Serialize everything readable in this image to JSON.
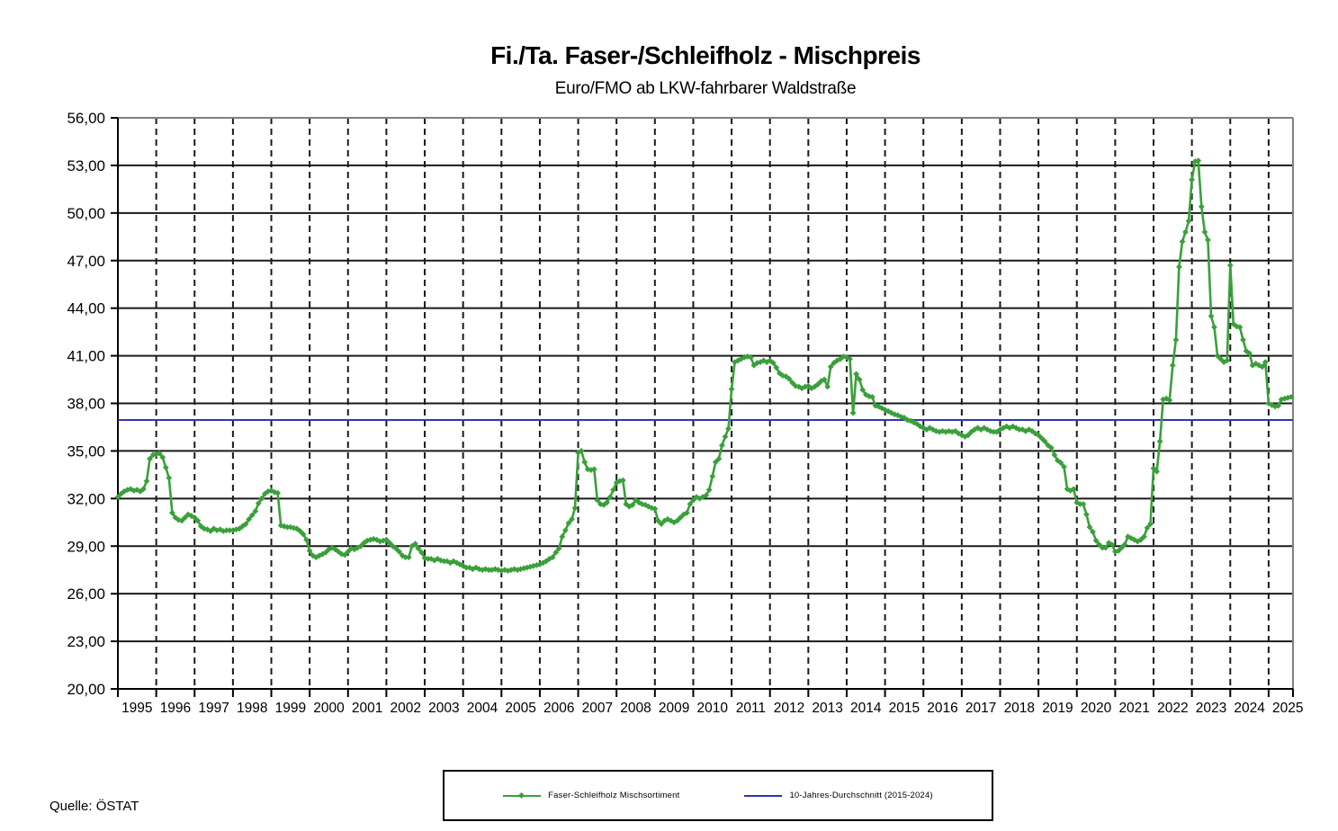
{
  "header": {
    "title": "Fi./Ta. Faser-/Schleifholz - Mischpreis",
    "subtitle": "Euro/FMO ab LKW-fahrbarer Waldstraße"
  },
  "source": "Quelle: ÖSTAT",
  "legend": {
    "series_label": "Faser-Schleifholz Mischsortiment",
    "average_label": "10-Jahres-Durchschnitt (2015-2024)"
  },
  "colors": {
    "series_green": "#3aa03a",
    "average_blue": "#3333b4",
    "gridline_black": "#1a1a1a",
    "border_gray": "#808080"
  },
  "chart_data": {
    "type": "line",
    "title": "Fi./Ta. Faser-/Schleifholz - Mischpreis",
    "subtitle": "Euro/FMO ab LKW-fahrbarer Waldstraße",
    "ylabel": "Euro/FMO",
    "ylim": [
      20,
      56
    ],
    "y_step": 3,
    "y_tick_labels": [
      "56,00",
      "53,00",
      "50,00",
      "47,00",
      "44,00",
      "41,00",
      "38,00",
      "35,00",
      "32,00",
      "29,00",
      "26,00",
      "23,00",
      "20,00"
    ],
    "x_tick_labels": [
      "1995",
      "1996",
      "1997",
      "1998",
      "1999",
      "2000",
      "2001",
      "2002",
      "2003",
      "2004",
      "2005",
      "2006",
      "2007",
      "2008",
      "2009",
      "2010",
      "2011",
      "2012",
      "2013",
      "2014",
      "2015",
      "2016",
      "2017",
      "2018",
      "2019",
      "2020",
      "2021",
      "2022",
      "2023",
      "2024",
      "2025"
    ],
    "grid": "horizontal solid, vertical dashed per year",
    "legend_position": "bottom box",
    "frequency": "monthly",
    "average_line": {
      "name": "10-Jahres-Durchschnitt (2015-2024)",
      "value": 36.95
    },
    "series": [
      {
        "name": "Faser-Schleifholz Mischsortiment",
        "start": "1995-01",
        "years": [
          {
            "year": 1995,
            "values": [
              32.1,
              32.3,
              32.45,
              32.55,
              32.6,
              32.5,
              32.55,
              32.45,
              32.6,
              33.1,
              34.5,
              34.75
            ]
          },
          {
            "year": 1996,
            "values": [
              34.8,
              34.85,
              34.6,
              33.95,
              33.3,
              31.1,
              30.8,
              30.65,
              30.6,
              30.8,
              31.0,
              30.9
            ]
          },
          {
            "year": 1997,
            "values": [
              30.8,
              30.6,
              30.25,
              30.1,
              30.05,
              29.95,
              30.1,
              30.0,
              30.05,
              29.95,
              30.0,
              30.0
            ]
          },
          {
            "year": 1998,
            "values": [
              30.0,
              30.05,
              30.1,
              30.25,
              30.4,
              30.7,
              30.95,
              31.2,
              31.7,
              32.0,
              32.3,
              32.45
            ]
          },
          {
            "year": 1999,
            "values": [
              32.5,
              32.4,
              32.35,
              30.3,
              30.25,
              30.2,
              30.2,
              30.15,
              30.1,
              29.95,
              29.75,
              29.4
            ]
          },
          {
            "year": 2000,
            "values": [
              28.7,
              28.4,
              28.3,
              28.4,
              28.5,
              28.6,
              28.8,
              28.9,
              28.8,
              28.65,
              28.5,
              28.45
            ]
          },
          {
            "year": 2001,
            "values": [
              28.65,
              28.85,
              28.8,
              28.9,
              29.0,
              29.2,
              29.35,
              29.4,
              29.45,
              29.4,
              29.3,
              29.35
            ]
          },
          {
            "year": 2002,
            "values": [
              29.4,
              29.2,
              29.0,
              28.85,
              28.65,
              28.4,
              28.3,
              28.3,
              29.0,
              29.15,
              28.85,
              28.6
            ]
          },
          {
            "year": 2003,
            "values": [
              28.25,
              28.2,
              28.2,
              28.1,
              28.2,
              28.1,
              28.05,
              28.05,
              27.95,
              28.05,
              27.95,
              27.85
            ]
          },
          {
            "year": 2004,
            "values": [
              27.75,
              27.65,
              27.65,
              27.55,
              27.65,
              27.55,
              27.5,
              27.55,
              27.5,
              27.5,
              27.55,
              27.5
            ]
          },
          {
            "year": 2005,
            "values": [
              27.45,
              27.5,
              27.45,
              27.5,
              27.55,
              27.5,
              27.55,
              27.6,
              27.65,
              27.7,
              27.75,
              27.8
            ]
          },
          {
            "year": 2006,
            "values": [
              27.85,
              27.95,
              28.05,
              28.2,
              28.3,
              28.6,
              28.85,
              29.6,
              30.0,
              30.45,
              30.7,
              31.4
            ]
          },
          {
            "year": 2007,
            "values": [
              34.9,
              35.0,
              34.3,
              33.85,
              33.8,
              33.85,
              31.9,
              31.65,
              31.6,
              31.75,
              32.1,
              32.55
            ]
          },
          {
            "year": 2008,
            "values": [
              33.0,
              33.1,
              33.15,
              31.65,
              31.5,
              31.6,
              31.9,
              31.75,
              31.65,
              31.6,
              31.5,
              31.4
            ]
          },
          {
            "year": 2009,
            "values": [
              31.35,
              30.6,
              30.4,
              30.6,
              30.7,
              30.6,
              30.5,
              30.6,
              30.8,
              31.0,
              31.1,
              31.65
            ]
          },
          {
            "year": 2010,
            "values": [
              31.9,
              32.1,
              32.0,
              32.1,
              32.2,
              32.55,
              33.4,
              34.3,
              34.5,
              35.35,
              35.9,
              36.4
            ]
          },
          {
            "year": 2011,
            "values": [
              38.9,
              40.6,
              40.7,
              40.8,
              40.9,
              40.95,
              40.9,
              40.4,
              40.55,
              40.6,
              40.7,
              40.6
            ]
          },
          {
            "year": 2012,
            "values": [
              40.7,
              40.55,
              40.25,
              39.9,
              39.75,
              39.7,
              39.55,
              39.3,
              39.1,
              39.05,
              38.95,
              39.05
            ]
          },
          {
            "year": 2013,
            "values": [
              39.1,
              38.95,
              39.05,
              39.2,
              39.4,
              39.5,
              39.05,
              40.3,
              40.55,
              40.7,
              40.8,
              40.95
            ]
          },
          {
            "year": 2014,
            "values": [
              40.9,
              40.8,
              37.4,
              39.85,
              39.5,
              38.85,
              38.55,
              38.45,
              38.4,
              37.85,
              37.8,
              37.7
            ]
          },
          {
            "year": 2015,
            "values": [
              37.6,
              37.5,
              37.4,
              37.3,
              37.25,
              37.15,
              37.1,
              36.95,
              36.9,
              36.8,
              36.7,
              36.55
            ]
          },
          {
            "year": 2016,
            "values": [
              36.45,
              36.35,
              36.45,
              36.35,
              36.25,
              36.2,
              36.25,
              36.2,
              36.25,
              36.2,
              36.25,
              36.1
            ]
          },
          {
            "year": 2017,
            "values": [
              36.0,
              35.9,
              36.0,
              36.2,
              36.35,
              36.45,
              36.35,
              36.45,
              36.35,
              36.25,
              36.2,
              36.2
            ]
          },
          {
            "year": 2018,
            "values": [
              36.35,
              36.45,
              36.55,
              36.45,
              36.55,
              36.45,
              36.35,
              36.35,
              36.25,
              36.35,
              36.25,
              36.1
            ]
          },
          {
            "year": 2019,
            "values": [
              36.0,
              35.8,
              35.6,
              35.35,
              35.2,
              34.75,
              34.4,
              34.25,
              34.0,
              32.6,
              32.5,
              32.6
            ]
          },
          {
            "year": 2020,
            "values": [
              31.75,
              31.65,
              31.65,
              31.0,
              30.2,
              29.9,
              29.35,
              29.1,
              28.9,
              28.9,
              29.2,
              29.1
            ]
          },
          {
            "year": 2021,
            "values": [
              28.65,
              28.7,
              28.9,
              29.1,
              29.6,
              29.5,
              29.4,
              29.3,
              29.4,
              29.6,
              30.15,
              30.4
            ]
          },
          {
            "year": 2022,
            "values": [
              33.9,
              33.7,
              35.6,
              38.25,
              38.3,
              38.2,
              40.4,
              42.0,
              46.6,
              48.2,
              48.8,
              49.5
            ]
          },
          {
            "year": 2023,
            "values": [
              52.1,
              53.25,
              53.3,
              50.4,
              48.8,
              48.3,
              43.5,
              42.8,
              41.0,
              40.8,
              40.6,
              40.7
            ]
          },
          {
            "year": 2024,
            "values": [
              46.7,
              43.0,
              42.85,
              42.8,
              42.0,
              41.3,
              41.15,
              40.4,
              40.5,
              40.4,
              40.3,
              40.6
            ]
          },
          {
            "year": 2025,
            "values": [
              38.0,
              37.9,
              37.8,
              37.85,
              38.25,
              38.3,
              38.35,
              38.4
            ]
          }
        ]
      }
    ]
  }
}
